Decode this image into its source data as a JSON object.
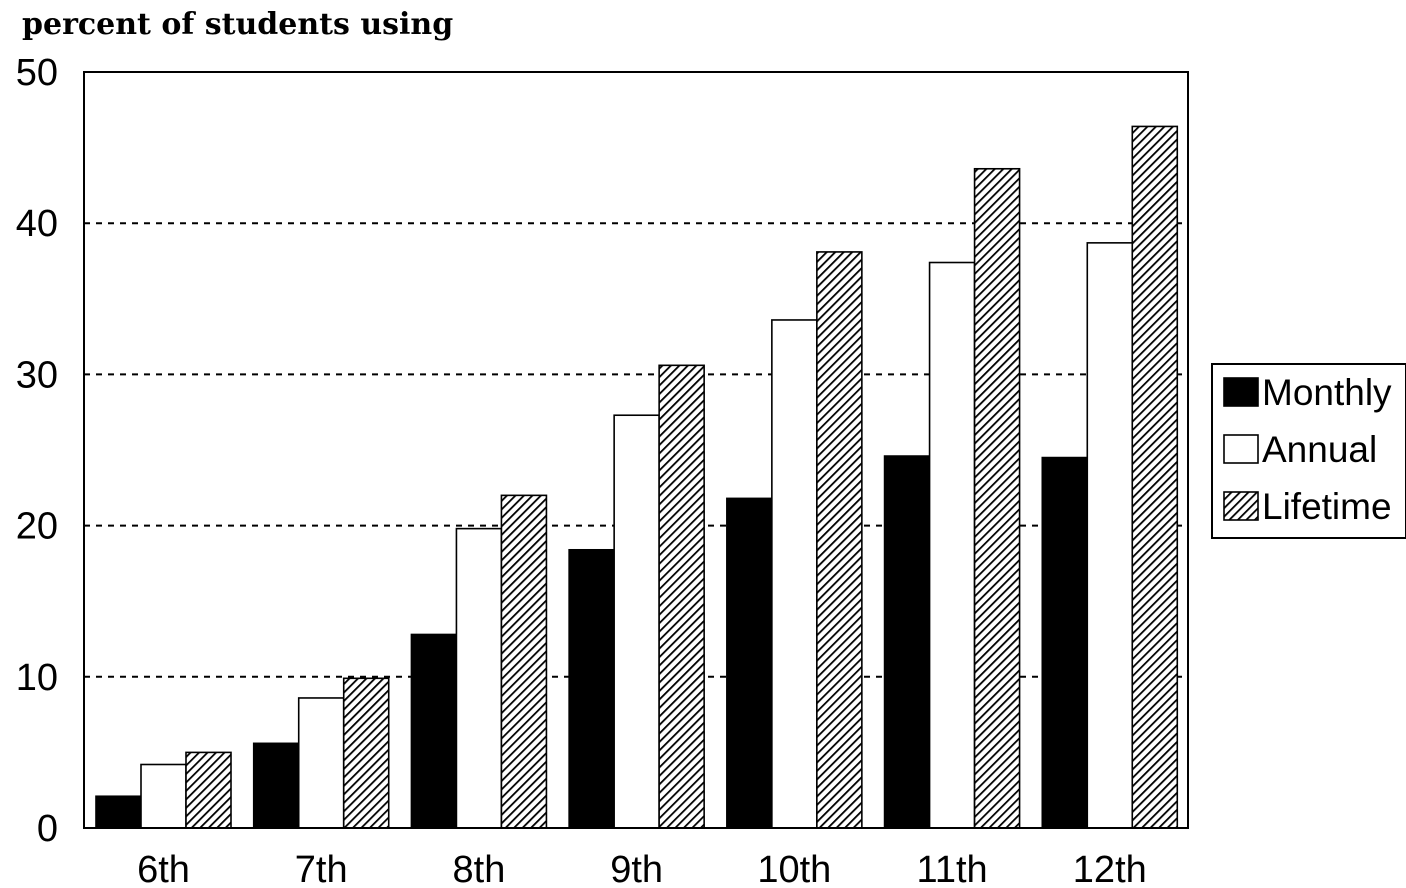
{
  "chart_data": {
    "type": "bar",
    "title": "",
    "xlabel": "",
    "ylabel": "percent of students using",
    "categories": [
      "6th",
      "7th",
      "8th",
      "9th",
      "10th",
      "11th",
      "12th"
    ],
    "series": [
      {
        "name": "Monthly",
        "values": [
          2.1,
          5.6,
          12.8,
          18.4,
          21.8,
          24.6,
          24.5
        ],
        "fill": "#000000"
      },
      {
        "name": "Annual",
        "values": [
          4.2,
          8.6,
          19.8,
          27.3,
          33.6,
          37.4,
          38.7
        ],
        "fill": "#ffffff"
      },
      {
        "name": "Lifetime",
        "values": [
          5.0,
          9.9,
          22.0,
          30.6,
          38.1,
          43.6,
          46.4
        ],
        "fill": "hatch"
      }
    ],
    "ylim": [
      0,
      50
    ],
    "yticks": [
      "0",
      "10",
      "20",
      "30",
      "40",
      "50"
    ],
    "grid": "horizontal dashed",
    "legend": "right"
  }
}
